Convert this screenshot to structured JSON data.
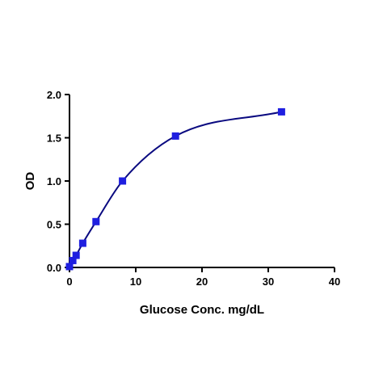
{
  "chart_data": {
    "type": "scatter",
    "title": "",
    "xlabel": "Glucose Conc. mg/dL",
    "ylabel": "OD",
    "xlim": [
      0,
      40
    ],
    "ylim": [
      0,
      2.0
    ],
    "x_ticks": [
      "0",
      "10",
      "20",
      "30",
      "40"
    ],
    "y_ticks": [
      "0.0",
      "0.5",
      "1.0",
      "1.5",
      "2.0"
    ],
    "grid": false,
    "legend": "none",
    "series": [
      {
        "x": [
          0,
          0.5,
          1,
          2,
          4,
          8,
          16,
          32
        ],
        "y": [
          0.01,
          0.08,
          0.14,
          0.28,
          0.53,
          1.0,
          1.52,
          1.8
        ],
        "marker": "square",
        "fit_line": "smooth curve",
        "marker_color": "#1f1fe0",
        "line_color": "#0a0a80"
      }
    ]
  }
}
